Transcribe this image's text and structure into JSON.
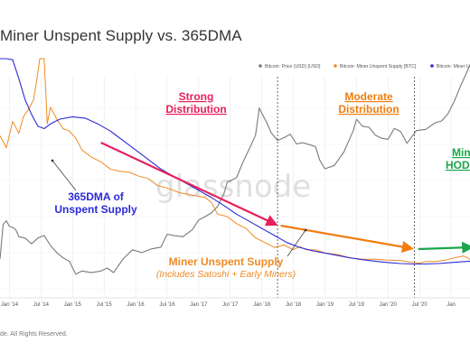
{
  "title": "Miner Unspent Supply vs. 365DMA",
  "footer": "de. All Rights Reserved.",
  "watermark": "glassnode",
  "colors": {
    "price": "#7a7a7a",
    "supply": "#f08a24",
    "dma": "#2b2bd6",
    "strong": "#e8205a",
    "moderate": "#f07d10",
    "hodl": "#1aa64a",
    "grid": "#e6e6e6"
  },
  "annotations": {
    "strong_line1": "Strong",
    "strong_line2": "Distribution",
    "moderate_line1": "Moderate",
    "moderate_line2": "Distribution",
    "hodl_line1": "Min",
    "hodl_line2": "HODL",
    "dma_line1": "365DMA of",
    "dma_line2": "Unspent Supply",
    "supply_line1": "Miner Unspent Supply",
    "supply_line2": "(Includes Satoshi + Early Miners)"
  },
  "chart_data": {
    "type": "line",
    "title": "Miner Unspent Supply vs. 365DMA",
    "x_ticks": [
      "Jan '14",
      "Jul '14",
      "Jan '15",
      "Jul '15",
      "Jan '16",
      "Jul '16",
      "Jan '17",
      "Jul '17",
      "Jan '18",
      "Jul '18",
      "Jan '19",
      "Jul '19",
      "Jan '20",
      "Jul '20",
      "Jan"
    ],
    "xlim": [
      2013.85,
      2021.3
    ],
    "grid": true,
    "legend_position": "top-right",
    "legend": [
      {
        "name": "Bitcoin: Price (USD) [USD]",
        "color": "#7a7a7a"
      },
      {
        "name": "Bitcoin: Miner Unspent Supply [BTC]",
        "color": "#f08a24"
      },
      {
        "name": "Bitcoin: Miner Un",
        "color": "#2b2bd6"
      }
    ],
    "series": [
      {
        "name": "Bitcoin: Price (USD) [USD]",
        "x": [
          2013.85,
          2013.9,
          2013.95,
          2014.0,
          2014.05,
          2014.1,
          2014.15,
          2014.25,
          2014.35,
          2014.45,
          2014.55,
          2014.65,
          2014.75,
          2014.85,
          2014.95,
          2015.05,
          2015.15,
          2015.3,
          2015.45,
          2015.55,
          2015.65,
          2015.8,
          2015.95,
          2016.1,
          2016.25,
          2016.4,
          2016.5,
          2016.6,
          2016.75,
          2016.9,
          2017.0,
          2017.1,
          2017.2,
          2017.3,
          2017.4,
          2017.45,
          2017.5,
          2017.6,
          2017.7,
          2017.8,
          2017.9,
          2017.96,
          2018.0,
          2018.08,
          2018.15,
          2018.25,
          2018.35,
          2018.45,
          2018.55,
          2018.65,
          2018.75,
          2018.85,
          2018.92,
          2019.0,
          2019.15,
          2019.3,
          2019.45,
          2019.5,
          2019.6,
          2019.7,
          2019.8,
          2019.9,
          2020.0,
          2020.1,
          2020.2,
          2020.3,
          2020.45,
          2020.6,
          2020.75,
          2020.85,
          2020.95,
          2021.05,
          2021.15,
          2021.25,
          2021.3
        ],
        "y": [
          340,
          820,
          900,
          780,
          760,
          720,
          600,
          580,
          500,
          580,
          620,
          480,
          400,
          350,
          320,
          230,
          250,
          240,
          250,
          270,
          240,
          340,
          430,
          400,
          440,
          460,
          640,
          620,
          600,
          720,
          920,
          1000,
          1100,
          1300,
          1800,
          2400,
          2500,
          2700,
          4000,
          5600,
          8000,
          16000,
          14000,
          11000,
          8500,
          7000,
          7500,
          8200,
          6400,
          6600,
          6300,
          6000,
          4200,
          3400,
          3700,
          5200,
          9000,
          12000,
          10000,
          9800,
          8000,
          7400,
          7200,
          9500,
          8800,
          6500,
          9000,
          9300,
          11000,
          11500,
          13800,
          19000,
          28000,
          40000,
          48000
        ]
      },
      {
        "name": "Bitcoin: Miner Unspent Supply [BTC]",
        "x": [
          2013.85,
          2013.95,
          2014.05,
          2014.15,
          2014.22,
          2014.3,
          2014.38,
          2014.43,
          2014.48,
          2014.55,
          2014.6,
          2014.65,
          2014.75,
          2014.85,
          2014.95,
          2015.05,
          2015.15,
          2015.3,
          2015.45,
          2015.6,
          2015.75,
          2015.9,
          2016.05,
          2016.2,
          2016.35,
          2016.5,
          2016.7,
          2016.9,
          2017.1,
          2017.2,
          2017.3,
          2017.45,
          2017.6,
          2017.75,
          2017.9,
          2018.05,
          2018.2,
          2018.35,
          2018.5,
          2018.6,
          2018.7,
          2018.85,
          2019.0,
          2019.2,
          2019.4,
          2019.6,
          2019.8,
          2020.0,
          2020.2,
          2020.35,
          2020.5,
          2020.6,
          2020.75,
          2020.9,
          2021.05,
          2021.2,
          2021.3
        ],
        "y": [
          2.225,
          2.2,
          2.255,
          2.23,
          2.265,
          2.28,
          2.3,
          2.34,
          2.415,
          2.39,
          2.25,
          2.285,
          2.26,
          2.24,
          2.235,
          2.22,
          2.195,
          2.18,
          2.17,
          2.155,
          2.15,
          2.148,
          2.14,
          2.135,
          2.12,
          2.115,
          2.105,
          2.1,
          2.095,
          2.085,
          2.06,
          2.055,
          2.04,
          2.03,
          2.01,
          2.0,
          1.99,
          1.995,
          1.985,
          1.992,
          1.985,
          1.985,
          1.978,
          1.975,
          1.968,
          1.965,
          1.965,
          1.963,
          1.962,
          1.959,
          1.957,
          1.96,
          1.96,
          1.963,
          1.968,
          1.972,
          1.965
        ]
      },
      {
        "name": "Bitcoin: Miner Un",
        "x": [
          2013.85,
          2013.95,
          2014.05,
          2014.15,
          2014.25,
          2014.35,
          2014.45,
          2014.55,
          2014.65,
          2014.8,
          2015.0,
          2015.2,
          2015.4,
          2015.6,
          2015.8,
          2016.0,
          2016.2,
          2016.4,
          2016.6,
          2016.8,
          2017.0,
          2017.2,
          2017.4,
          2017.6,
          2017.8,
          2018.0,
          2018.2,
          2018.4,
          2018.6,
          2018.8,
          2019.0,
          2019.2,
          2019.4,
          2019.6,
          2019.8,
          2020.0,
          2020.2,
          2020.4,
          2020.6,
          2020.8,
          2021.0,
          2021.2,
          2021.3
        ],
        "y": [
          2.47,
          2.425,
          2.385,
          2.345,
          2.3,
          2.27,
          2.245,
          2.24,
          2.25,
          2.26,
          2.265,
          2.262,
          2.25,
          2.235,
          2.215,
          2.195,
          2.175,
          2.155,
          2.14,
          2.125,
          2.11,
          2.095,
          2.078,
          2.06,
          2.045,
          2.03,
          2.015,
          2.0,
          1.99,
          1.983,
          1.978,
          1.973,
          1.968,
          1.964,
          1.961,
          1.958,
          1.956,
          1.955,
          1.955,
          1.956,
          1.958,
          1.96,
          1.961
        ]
      }
    ]
  }
}
